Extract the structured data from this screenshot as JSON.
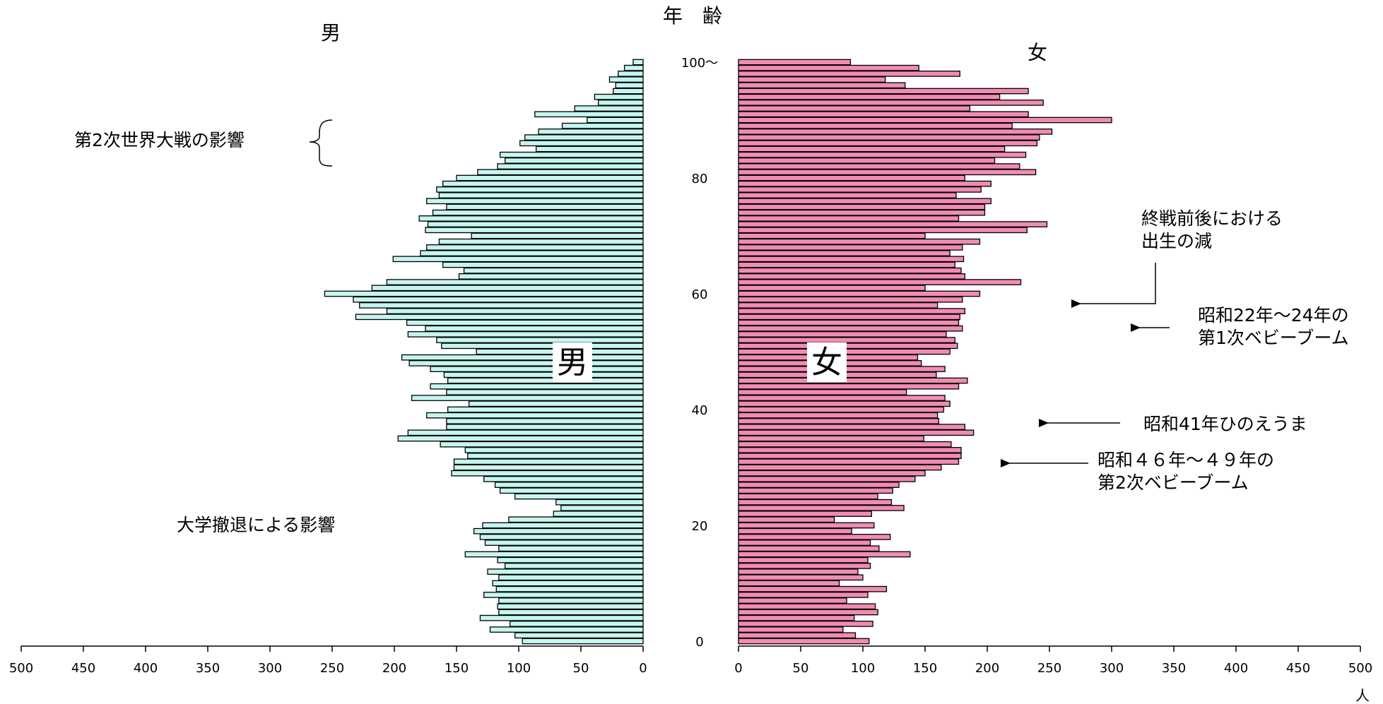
{
  "chart_data": {
    "type": "bar",
    "title": "年　齢",
    "left_label": "男",
    "right_label": "女",
    "left_center_label": "男",
    "right_center_label": "女",
    "unit_label": "人",
    "age_axis_ticks": [
      "0",
      "20",
      "40",
      "60",
      "80",
      "100～"
    ],
    "x_ticks_left": [
      "500",
      "450",
      "400",
      "350",
      "300",
      "250",
      "200",
      "150",
      "100",
      "50",
      "0"
    ],
    "x_ticks_right": [
      "0",
      "50",
      "100",
      "150",
      "200",
      "250",
      "300",
      "350",
      "400",
      "450",
      "500"
    ],
    "xlim": [
      0,
      500
    ],
    "colors": {
      "male": "#c6f5ef",
      "female": "#f08cb4",
      "edge": "#000000"
    },
    "series": [
      {
        "name": "男",
        "ages": [
          0,
          1,
          2,
          3,
          4,
          5,
          6,
          7,
          8,
          9,
          10,
          11,
          12,
          13,
          14,
          15,
          16,
          17,
          18,
          19,
          20,
          21,
          22,
          23,
          24,
          25,
          26,
          27,
          28,
          29,
          30,
          31,
          32,
          33,
          34,
          35,
          36,
          37,
          38,
          39,
          40,
          41,
          42,
          43,
          44,
          45,
          46,
          47,
          48,
          49,
          50,
          51,
          52,
          53,
          54,
          55,
          56,
          57,
          58,
          59,
          60,
          61,
          62,
          63,
          64,
          65,
          66,
          67,
          68,
          69,
          70,
          71,
          72,
          73,
          74,
          75,
          76,
          77,
          78,
          79,
          80,
          81,
          82,
          83,
          84,
          85,
          86,
          87,
          88,
          89,
          90,
          91,
          92,
          93,
          94,
          95,
          96,
          97,
          98,
          99,
          100
        ],
        "values": [
          97,
          103,
          123,
          107,
          131,
          116,
          117,
          116,
          128,
          118,
          121,
          116,
          125,
          111,
          117,
          143,
          116,
          127,
          131,
          136,
          129,
          108,
          72,
          66,
          70,
          103,
          115,
          119,
          128,
          154,
          152,
          152,
          141,
          143,
          163,
          197,
          189,
          158,
          158,
          174,
          157,
          140,
          186,
          158,
          171,
          157,
          160,
          171,
          188,
          194,
          134,
          162,
          166,
          189,
          175,
          190,
          231,
          206,
          228,
          233,
          256,
          218,
          206,
          148,
          144,
          161,
          201,
          179,
          174,
          164,
          138,
          175,
          173,
          180,
          169,
          158,
          174,
          164,
          166,
          161,
          150,
          133,
          117,
          111,
          115,
          86,
          99,
          95,
          84,
          65,
          45,
          87,
          55,
          36,
          39,
          24,
          22,
          27,
          20,
          15,
          8
        ]
      },
      {
        "name": "女",
        "ages": [
          0,
          1,
          2,
          3,
          4,
          5,
          6,
          7,
          8,
          9,
          10,
          11,
          12,
          13,
          14,
          15,
          16,
          17,
          18,
          19,
          20,
          21,
          22,
          23,
          24,
          25,
          26,
          27,
          28,
          29,
          30,
          31,
          32,
          33,
          34,
          35,
          36,
          37,
          38,
          39,
          40,
          41,
          42,
          43,
          44,
          45,
          46,
          47,
          48,
          49,
          50,
          51,
          52,
          53,
          54,
          55,
          56,
          57,
          58,
          59,
          60,
          61,
          62,
          63,
          64,
          65,
          66,
          67,
          68,
          69,
          70,
          71,
          72,
          73,
          74,
          75,
          76,
          77,
          78,
          79,
          80,
          81,
          82,
          83,
          84,
          85,
          86,
          87,
          88,
          89,
          90,
          91,
          92,
          93,
          94,
          95,
          96,
          97,
          98,
          99,
          100
        ],
        "values": [
          105,
          94,
          84,
          108,
          93,
          112,
          110,
          87,
          104,
          119,
          81,
          100,
          96,
          106,
          104,
          138,
          113,
          106,
          122,
          91,
          109,
          77,
          107,
          133,
          123,
          112,
          124,
          129,
          142,
          150,
          163,
          177,
          179,
          179,
          171,
          149,
          189,
          182,
          161,
          160,
          165,
          170,
          166,
          135,
          177,
          184,
          159,
          166,
          147,
          144,
          170,
          176,
          174,
          167,
          180,
          177,
          178,
          182,
          160,
          180,
          194,
          150,
          227,
          182,
          179,
          174,
          181,
          170,
          180,
          194,
          150,
          232,
          248,
          177,
          198,
          198,
          203,
          175,
          195,
          203,
          182,
          239,
          226,
          206,
          231,
          214,
          240,
          242,
          252,
          220,
          300,
          233,
          186,
          245,
          210,
          233,
          134,
          118,
          178,
          145,
          90
        ]
      }
    ],
    "annotations": {
      "ww2": "第2次世界大戦の影響",
      "univ": "大学撤退による影響",
      "postwar_line1": "終戦前後における",
      "postwar_line2": "出生の減",
      "boom1_line1": "昭和22年～24年の",
      "boom1_line2": "第1次ベビーブーム",
      "hinoeuma": "昭和41年ひのえうま",
      "boom2_line1": "昭和４６年～４９年の",
      "boom2_line2": "第2次ベビーブーム"
    }
  }
}
